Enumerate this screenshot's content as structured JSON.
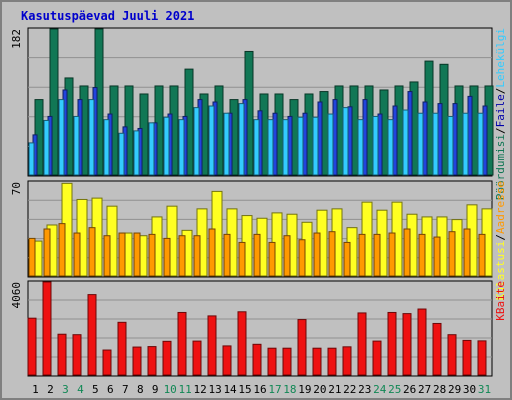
{
  "title": "Kasutuspäevad Juuli 2021",
  "colors": {
    "hits": "#117755",
    "files": "#2244dd",
    "pages": "#33ccff",
    "visits": "#ffff22",
    "sites": "#ff9900",
    "kbytes": "#ee1111",
    "label_files": "#0000aa",
    "weekend_day": "#118855",
    "text": "#000000"
  },
  "chart_data": [
    {
      "type": "bar",
      "categories": [
        "1",
        "2",
        "3",
        "4",
        "5",
        "6",
        "7",
        "8",
        "9",
        "10",
        "11",
        "12",
        "13",
        "14",
        "15",
        "16",
        "17",
        "18",
        "19",
        "20",
        "21",
        "22",
        "23",
        "24",
        "25",
        "26",
        "27",
        "28",
        "29",
        "30",
        "31"
      ],
      "weekend_days": [
        "3",
        "4",
        "10",
        "11",
        "17",
        "18",
        "24",
        "25",
        "31"
      ],
      "ymax_label": "182",
      "ylim": [
        0,
        182
      ],
      "series": [
        {
          "name": "Pöördumisi",
          "values": [
            94,
            182,
            121,
            111,
            182,
            111,
            111,
            101,
            111,
            111,
            132,
            101,
            111,
            94,
            154,
            101,
            101,
            94,
            101,
            104,
            111,
            111,
            111,
            106,
            111,
            116,
            142,
            138,
            111,
            111,
            111
          ]
        },
        {
          "name": "Faile",
          "values": [
            50,
            73,
            106,
            94,
            109,
            76,
            60,
            58,
            65,
            76,
            73,
            94,
            91,
            77,
            94,
            80,
            77,
            73,
            77,
            91,
            94,
            85,
            94,
            76,
            86,
            104,
            91,
            89,
            89,
            98,
            86
          ]
        },
        {
          "name": "Lehekülgi",
          "values": [
            40,
            68,
            94,
            73,
            94,
            69,
            52,
            55,
            65,
            72,
            69,
            84,
            86,
            77,
            89,
            69,
            69,
            69,
            72,
            72,
            76,
            84,
            69,
            73,
            69,
            81,
            77,
            77,
            73,
            77,
            77
          ]
        }
      ]
    },
    {
      "type": "bar",
      "categories": [
        "1",
        "2",
        "3",
        "4",
        "5",
        "6",
        "7",
        "8",
        "9",
        "10",
        "11",
        "12",
        "13",
        "14",
        "15",
        "16",
        "17",
        "18",
        "19",
        "20",
        "21",
        "22",
        "23",
        "24",
        "25",
        "26",
        "27",
        "28",
        "29",
        "30",
        "31"
      ],
      "ymax_label": "70",
      "ylim": [
        0,
        70
      ],
      "series": [
        {
          "name": "Külastusi",
          "values": [
            26,
            38,
            69,
            57,
            58,
            52,
            32,
            30,
            44,
            52,
            34,
            50,
            63,
            50,
            45,
            43,
            47,
            46,
            40,
            49,
            50,
            36,
            55,
            49,
            55,
            46,
            44,
            44,
            42,
            53,
            50
          ]
        },
        {
          "name": "Aadresse",
          "values": [
            28,
            35,
            39,
            32,
            36,
            30,
            32,
            32,
            31,
            28,
            30,
            30,
            35,
            31,
            25,
            31,
            25,
            30,
            27,
            32,
            33,
            25,
            31,
            31,
            32,
            35,
            31,
            29,
            33,
            35,
            31
          ]
        }
      ]
    },
    {
      "type": "bar",
      "categories": [
        "1",
        "2",
        "3",
        "4",
        "5",
        "6",
        "7",
        "8",
        "9",
        "10",
        "11",
        "12",
        "13",
        "14",
        "15",
        "16",
        "17",
        "18",
        "19",
        "20",
        "21",
        "22",
        "23",
        "24",
        "25",
        "26",
        "27",
        "28",
        "29",
        "30",
        "31"
      ],
      "ymax_label": "4060",
      "ylim": [
        0,
        4060
      ],
      "series": [
        {
          "name": "KBaite",
          "values": [
            2480,
            4060,
            1780,
            1760,
            3510,
            1090,
            2300,
            1220,
            1240,
            1470,
            2730,
            1480,
            2580,
            1270,
            2760,
            1340,
            1170,
            1170,
            2420,
            1170,
            1170,
            1230,
            2710,
            1480,
            2730,
            2680,
            2880,
            2250,
            1760,
            1510,
            1490
          ]
        }
      ]
    }
  ],
  "right_labels": {
    "top": [
      {
        "text": "Pöördumisi",
        "key": "hits"
      },
      {
        "text": "/",
        "key": "text"
      },
      {
        "text": "Faile",
        "key": "label_files"
      },
      {
        "text": "/",
        "key": "text"
      },
      {
        "text": "Lehekülgi",
        "key": "pages"
      }
    ],
    "middle": [
      {
        "text": "Külastusi",
        "key": "visits"
      },
      {
        "text": "/",
        "key": "text"
      },
      {
        "text": "Aadresse",
        "key": "sites"
      }
    ],
    "bottom": [
      {
        "text": "KBaite",
        "key": "kbytes"
      }
    ]
  }
}
